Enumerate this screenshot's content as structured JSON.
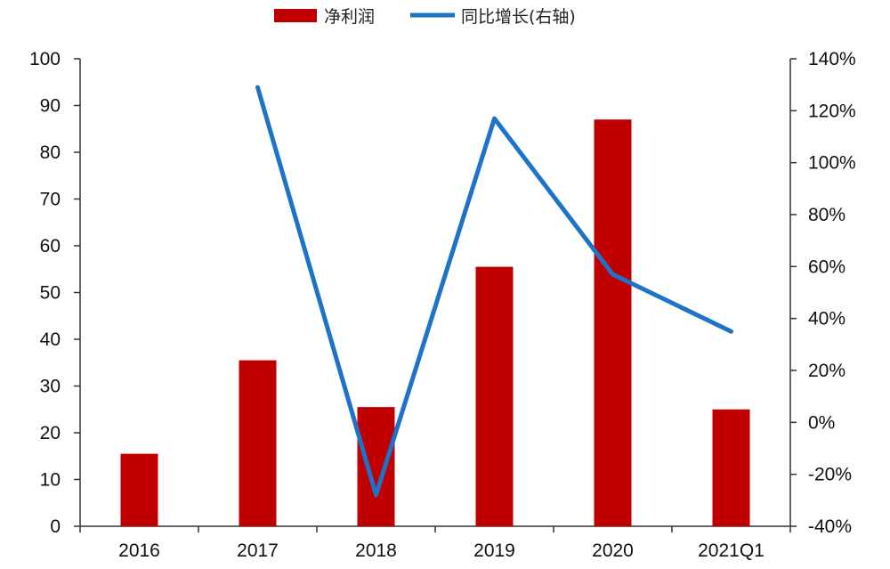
{
  "chart_data": {
    "type": "bar+line",
    "title": "",
    "categories": [
      "2016",
      "2017",
      "2018",
      "2019",
      "2020",
      "2021Q1"
    ],
    "series": [
      {
        "name": "净利润",
        "type": "bar",
        "axis": "left",
        "color": "#c00000",
        "values": [
          15.5,
          35.5,
          25.5,
          55.5,
          87,
          25
        ]
      },
      {
        "name": "同比增长(右轴)",
        "type": "line",
        "axis": "right",
        "color": "#1e73c8",
        "values": [
          null,
          129,
          -28,
          117,
          57,
          35
        ]
      }
    ],
    "left_axis": {
      "min": 0,
      "max": 100,
      "ticks": [
        0,
        10,
        20,
        30,
        40,
        50,
        60,
        70,
        80,
        90,
        100
      ],
      "tick_labels": [
        "0",
        "10",
        "20",
        "30",
        "40",
        "50",
        "60",
        "70",
        "80",
        "90",
        "100"
      ]
    },
    "right_axis": {
      "min": -40,
      "max": 140,
      "ticks": [
        -40,
        -20,
        0,
        20,
        40,
        60,
        80,
        100,
        120,
        140
      ],
      "tick_labels": [
        "-40%",
        "-20%",
        "0%",
        "20%",
        "40%",
        "60%",
        "80%",
        "100%",
        "120%",
        "140%"
      ]
    },
    "grid": false,
    "legend": "top-center"
  }
}
